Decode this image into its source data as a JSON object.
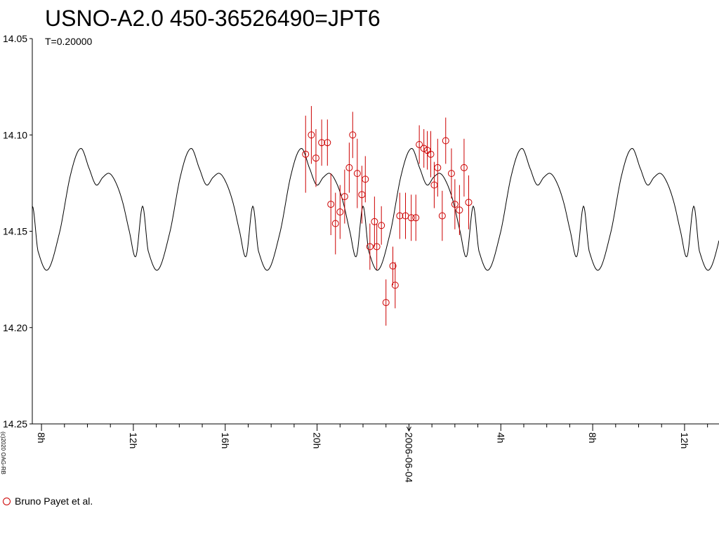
{
  "chart_data": {
    "type": "scatter",
    "title": "USNO-A2.0 450-36526490=JPT6",
    "subtitle": "T=0.20000",
    "copyright": "(c)2020 OAG-RB",
    "y_axis": {
      "reversed": true,
      "ylim": [
        14.05,
        14.25
      ],
      "ticks": [
        "14.05",
        "14.10",
        "14.15",
        "14.20",
        "14.25"
      ]
    },
    "x_axis": {
      "unit": "hours since 2006-06-03 08:00",
      "xlim": [
        7.6,
        37.5
      ],
      "ticks": [
        {
          "x": 8,
          "label": "8h"
        },
        {
          "x": 12,
          "label": "12h"
        },
        {
          "x": 16,
          "label": "16h"
        },
        {
          "x": 20,
          "label": "20h"
        },
        {
          "x": 24,
          "label": "2006-06-04"
        },
        {
          "x": 28,
          "label": "4h"
        },
        {
          "x": 32,
          "label": "8h"
        },
        {
          "x": 36,
          "label": "12h"
        }
      ]
    },
    "legend": {
      "label": "Bruno Payet et al.",
      "color": "#cc0000"
    },
    "model_curve": {
      "color": "#000000",
      "period_hours": 4.8,
      "phase_start": 7.6,
      "profile_phase": [
        0.0,
        0.05,
        0.14,
        0.25,
        0.35,
        0.44,
        0.52,
        0.58,
        0.64,
        0.7,
        0.76,
        0.82,
        0.88,
        0.94,
        1.0
      ],
      "profile_mag": [
        14.137,
        14.16,
        14.17,
        14.15,
        14.12,
        14.107,
        14.118,
        14.126,
        14.122,
        14.12,
        14.125,
        14.135,
        14.15,
        14.163,
        14.137
      ]
    },
    "series": [
      {
        "name": "Bruno Payet et al.",
        "color": "#cc0000",
        "points": [
          {
            "x": 19.5,
            "y": 14.11,
            "err": 0.02
          },
          {
            "x": 19.75,
            "y": 14.1,
            "err": 0.015
          },
          {
            "x": 19.95,
            "y": 14.112,
            "err": 0.015
          },
          {
            "x": 20.2,
            "y": 14.104,
            "err": 0.012
          },
          {
            "x": 20.45,
            "y": 14.104,
            "err": 0.012
          },
          {
            "x": 20.6,
            "y": 14.136,
            "err": 0.016
          },
          {
            "x": 20.8,
            "y": 14.146,
            "err": 0.016
          },
          {
            "x": 21.0,
            "y": 14.14,
            "err": 0.014
          },
          {
            "x": 21.2,
            "y": 14.132,
            "err": 0.014
          },
          {
            "x": 21.4,
            "y": 14.117,
            "err": 0.013
          },
          {
            "x": 21.55,
            "y": 14.1,
            "err": 0.012
          },
          {
            "x": 21.75,
            "y": 14.12,
            "err": 0.018
          },
          {
            "x": 21.95,
            "y": 14.131,
            "err": 0.015
          },
          {
            "x": 22.1,
            "y": 14.123,
            "err": 0.012
          },
          {
            "x": 22.3,
            "y": 14.158,
            "err": 0.012
          },
          {
            "x": 22.5,
            "y": 14.145,
            "err": 0.013
          },
          {
            "x": 22.6,
            "y": 14.158,
            "err": 0.012
          },
          {
            "x": 22.8,
            "y": 14.147,
            "err": 0.01
          },
          {
            "x": 23.0,
            "y": 14.187,
            "err": 0.012
          },
          {
            "x": 23.3,
            "y": 14.168,
            "err": 0.01
          },
          {
            "x": 23.4,
            "y": 14.178,
            "err": 0.012
          },
          {
            "x": 23.6,
            "y": 14.142,
            "err": 0.012
          },
          {
            "x": 23.85,
            "y": 14.142,
            "err": 0.012
          },
          {
            "x": 24.1,
            "y": 14.143,
            "err": 0.012
          },
          {
            "x": 24.3,
            "y": 14.143,
            "err": 0.012
          },
          {
            "x": 24.45,
            "y": 14.105,
            "err": 0.01
          },
          {
            "x": 24.65,
            "y": 14.107,
            "err": 0.01
          },
          {
            "x": 24.8,
            "y": 14.108,
            "err": 0.01
          },
          {
            "x": 24.95,
            "y": 14.11,
            "err": 0.012
          },
          {
            "x": 25.1,
            "y": 14.126,
            "err": 0.012
          },
          {
            "x": 25.25,
            "y": 14.117,
            "err": 0.015
          },
          {
            "x": 25.45,
            "y": 14.142,
            "err": 0.013
          },
          {
            "x": 25.6,
            "y": 14.103,
            "err": 0.012
          },
          {
            "x": 25.85,
            "y": 14.12,
            "err": 0.013
          },
          {
            "x": 26.0,
            "y": 14.136,
            "err": 0.013
          },
          {
            "x": 26.2,
            "y": 14.139,
            "err": 0.013
          },
          {
            "x": 26.4,
            "y": 14.117,
            "err": 0.015
          },
          {
            "x": 26.6,
            "y": 14.135,
            "err": 0.014
          }
        ]
      }
    ]
  }
}
